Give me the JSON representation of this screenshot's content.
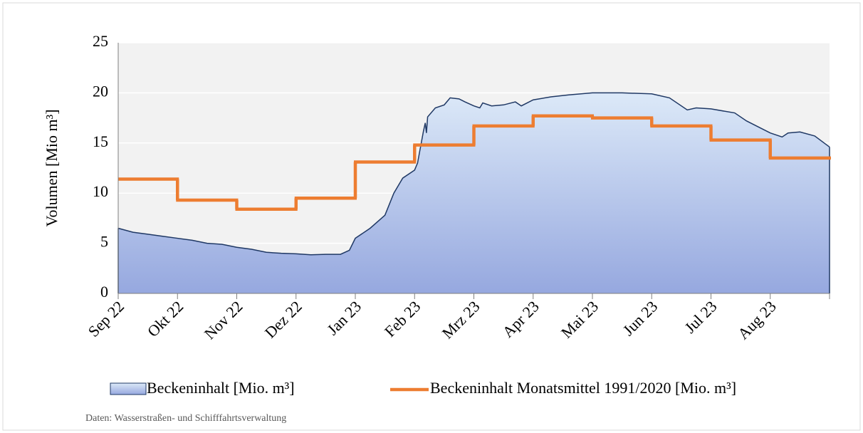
{
  "chart_data": {
    "type": "area",
    "ylabel": "Volumen  [Mio m³]",
    "source": "Daten: Wasserstraßen- und Schifffahrtsverwaltung",
    "xlim": [
      0,
      12
    ],
    "xticks": [
      {
        "value": 0,
        "label": "Sep 22"
      },
      {
        "value": 1,
        "label": "Okt 22"
      },
      {
        "value": 2,
        "label": "Nov 22"
      },
      {
        "value": 3,
        "label": "Dez 22"
      },
      {
        "value": 4,
        "label": "Jan 23"
      },
      {
        "value": 5,
        "label": "Feb 23"
      },
      {
        "value": 6,
        "label": "Mrz 23"
      },
      {
        "value": 7,
        "label": "Apr 23"
      },
      {
        "value": 8,
        "label": "Mai 23"
      },
      {
        "value": 9,
        "label": "Jun 23"
      },
      {
        "value": 10,
        "label": "Jul 23"
      },
      {
        "value": 11,
        "label": "Aug 23"
      }
    ],
    "ylim": [
      0,
      25
    ],
    "yticks": [
      0,
      5,
      10,
      15,
      20,
      25
    ],
    "grid": true,
    "series": [
      {
        "name": "Beckeninhalt [Mio. m³]",
        "color": "#1f3864",
        "x": [
          0,
          0.25,
          0.5,
          0.75,
          1,
          1.25,
          1.5,
          1.75,
          2,
          2.25,
          2.5,
          2.75,
          3,
          3.25,
          3.5,
          3.75,
          3.9,
          4,
          4.25,
          4.5,
          4.65,
          4.8,
          5,
          5.05,
          5.15,
          5.18,
          5.2,
          5.22,
          5.35,
          5.5,
          5.6,
          5.75,
          5.85,
          6,
          6.1,
          6.15,
          6.3,
          6.5,
          6.7,
          6.8,
          7,
          7.3,
          7.6,
          8,
          8.5,
          9,
          9.3,
          9.6,
          9.75,
          10,
          10.4,
          10.6,
          11,
          11.2,
          11.3,
          11.5,
          11.75,
          12
        ],
        "values": [
          6.5,
          6.1,
          5.9,
          5.7,
          5.5,
          5.3,
          5.0,
          4.9,
          4.6,
          4.4,
          4.1,
          4.0,
          3.95,
          3.85,
          3.9,
          3.9,
          4.3,
          5.5,
          6.5,
          7.8,
          10,
          11.5,
          12.3,
          13,
          16.2,
          17,
          16,
          17.6,
          18.5,
          18.8,
          19.5,
          19.4,
          19.1,
          18.7,
          18.5,
          19.0,
          18.7,
          18.8,
          19.1,
          18.7,
          19.3,
          19.6,
          19.8,
          20.0,
          20.0,
          19.9,
          19.5,
          18.3,
          18.5,
          18.4,
          18.0,
          17.2,
          16.0,
          15.6,
          16.0,
          16.1,
          15.7,
          14.6
        ]
      },
      {
        "name": "Beckeninhalt Monatsmittel 1991/2020 [Mio. m³]",
        "color": "#ed7d31",
        "values": [
          11.4,
          9.3,
          8.4,
          9.5,
          13.1,
          14.8,
          16.7,
          17.7,
          17.5,
          16.7,
          15.3,
          13.5
        ]
      }
    ]
  }
}
